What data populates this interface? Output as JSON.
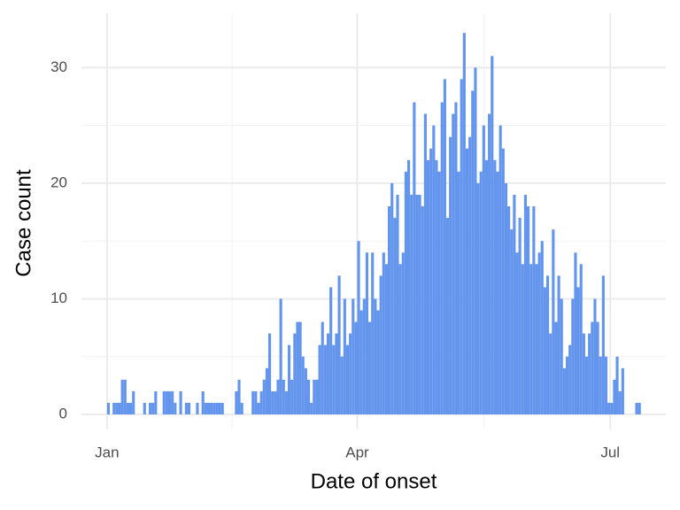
{
  "chart_data": {
    "type": "histogram",
    "x_label": "Date of onset",
    "y_label": "Case count",
    "color": "#6495ED",
    "grid": true,
    "bins": [
      0,
      1,
      2,
      3,
      4,
      5,
      6,
      7,
      8,
      9,
      10,
      11,
      12,
      13,
      14,
      15,
      16,
      17,
      18,
      19,
      20,
      21,
      22,
      23,
      24,
      25,
      26,
      27,
      28,
      29,
      30,
      31,
      32,
      33,
      34,
      35,
      36,
      37,
      38,
      39,
      40,
      41,
      42,
      43,
      44,
      45,
      46,
      47,
      48,
      49,
      50,
      51,
      52,
      53,
      54,
      55,
      56,
      57,
      58,
      59,
      60,
      61,
      62,
      63,
      64,
      65,
      66,
      67,
      68,
      69,
      70,
      71,
      72,
      73,
      74,
      75,
      76,
      77,
      78,
      79,
      80,
      81,
      82,
      83,
      84,
      85,
      86,
      87,
      88,
      89,
      90,
      91,
      92,
      93,
      94,
      95,
      96,
      97,
      98,
      99,
      100,
      101,
      102,
      103,
      104,
      105,
      106,
      107,
      108,
      109,
      110,
      111,
      112,
      113,
      114,
      115,
      116,
      117,
      118,
      119,
      120,
      121,
      122,
      123,
      124,
      125,
      126,
      127,
      128,
      129,
      130,
      131,
      132,
      133,
      134,
      135,
      136,
      137,
      138,
      139,
      140,
      141,
      142,
      143,
      144,
      145,
      146,
      147,
      148,
      149,
      150,
      151,
      152,
      153,
      154,
      155,
      156,
      157,
      158,
      159,
      160,
      161,
      162,
      163,
      164,
      165,
      166,
      167,
      168,
      169,
      170,
      171,
      172,
      173,
      174,
      175,
      176,
      177,
      178,
      179,
      180,
      181,
      182,
      183,
      184,
      185,
      186,
      187,
      188,
      189,
      190,
      191,
      192
    ],
    "values": [
      1,
      0,
      1,
      1,
      1,
      3,
      3,
      1,
      1,
      2,
      0,
      0,
      0,
      1,
      0,
      1,
      1,
      2,
      0,
      0,
      2,
      2,
      2,
      2,
      1,
      0,
      2,
      0,
      1,
      1,
      0,
      0,
      1,
      0,
      2,
      1,
      1,
      1,
      1,
      1,
      1,
      1,
      0,
      0,
      0,
      0,
      2,
      3,
      1,
      0,
      0,
      0,
      2,
      2,
      1,
      2,
      3,
      4,
      7,
      2,
      2,
      3,
      10,
      3,
      2,
      6,
      3,
      7,
      8,
      8,
      5,
      4,
      3,
      1,
      3,
      3,
      6,
      8,
      6,
      7,
      11,
      6,
      7,
      12,
      5,
      10,
      6,
      7,
      10,
      8,
      15,
      9,
      10,
      14,
      8,
      14,
      10,
      9,
      12,
      14,
      13,
      18,
      20,
      17,
      19,
      13,
      14,
      21,
      22,
      19,
      27,
      19,
      19,
      18,
      26,
      22,
      23,
      25,
      22,
      21,
      27,
      29,
      17,
      24,
      26,
      27,
      21,
      29,
      33,
      23,
      24,
      28,
      30,
      20,
      21,
      25,
      22,
      26,
      31,
      22,
      21,
      25,
      23,
      20,
      18,
      16,
      19,
      14,
      17,
      13,
      19,
      18,
      13,
      18,
      13,
      14,
      15,
      11,
      12,
      7,
      16,
      8,
      12,
      10,
      4,
      5,
      6,
      10,
      14,
      11,
      13,
      7,
      5,
      7,
      8,
      10,
      8,
      5,
      12,
      5,
      1,
      1,
      3,
      5,
      2,
      4,
      0,
      0,
      0,
      0,
      1,
      1
    ],
    "xlim": [
      -9.2,
      201
    ],
    "ylim": [
      -1.3,
      34.7
    ],
    "xticks": [
      {
        "value": 0,
        "label": "Jan"
      },
      {
        "value": 90,
        "label": "Apr"
      },
      {
        "value": 181,
        "label": "Jul"
      }
    ],
    "minor_xticks": [
      45,
      135.5
    ],
    "yticks": [
      0,
      10,
      20,
      30
    ],
    "minor_yticks": [
      5,
      15,
      25
    ]
  }
}
